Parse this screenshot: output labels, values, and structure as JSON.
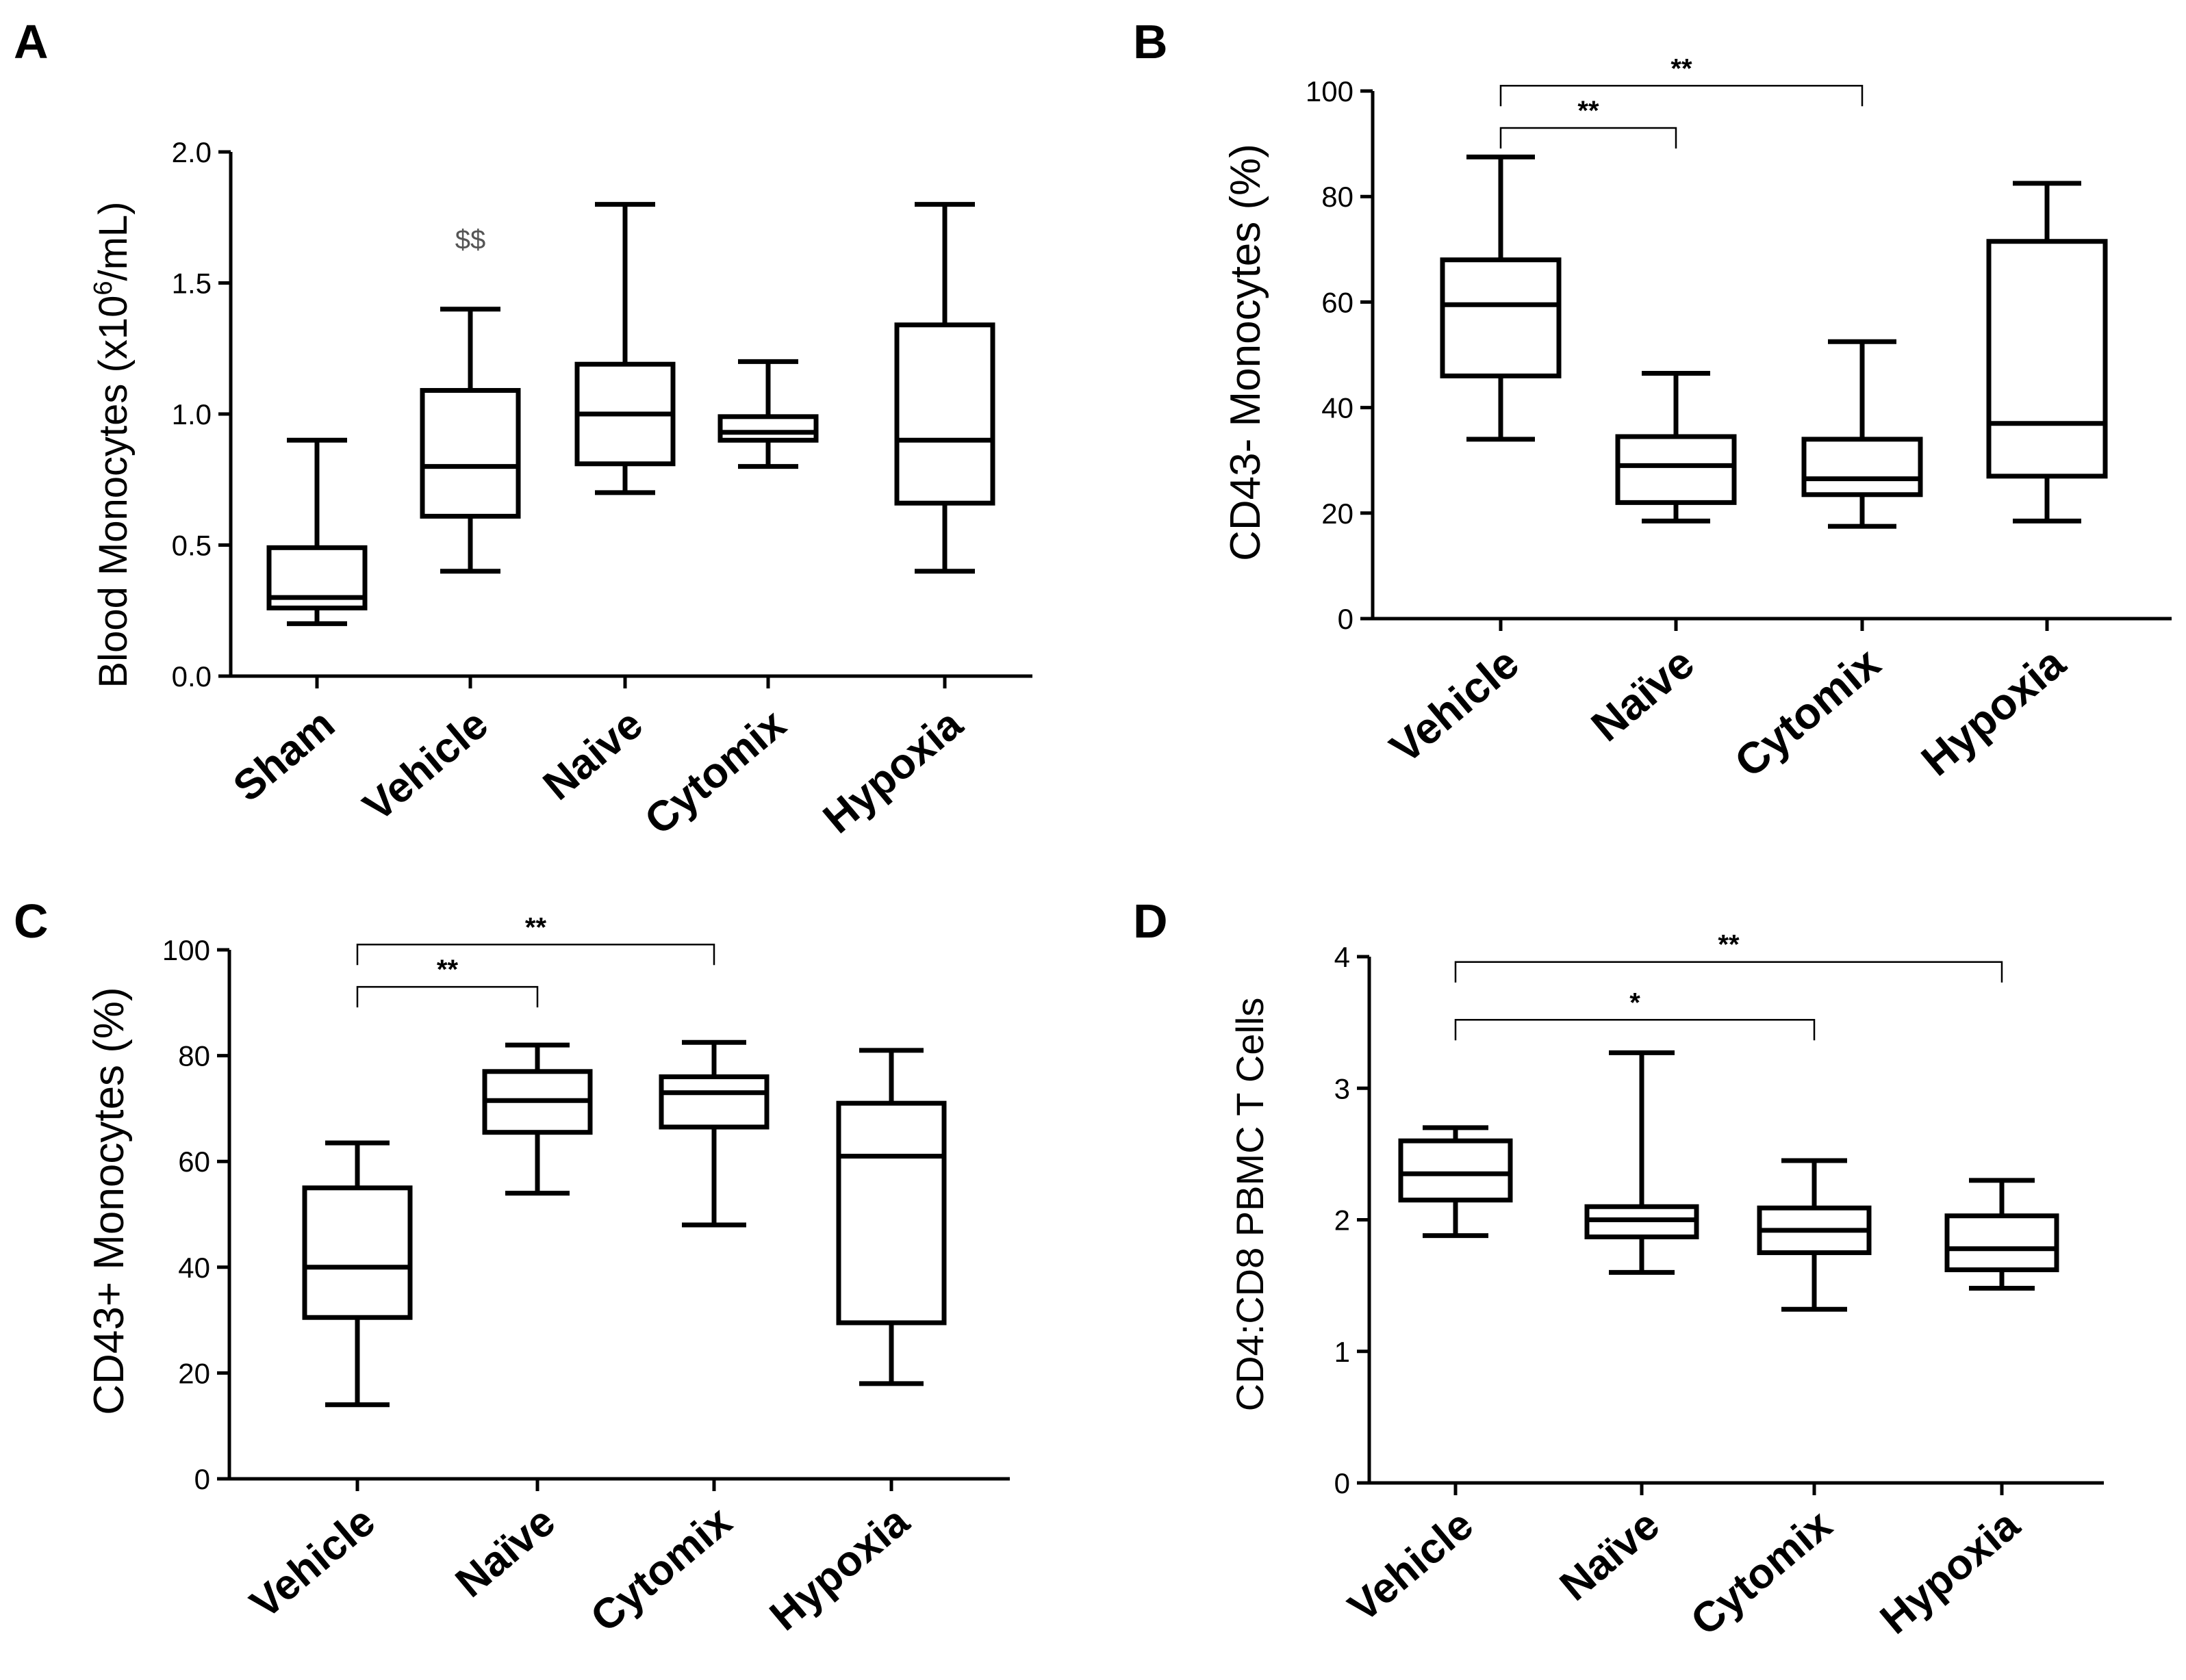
{
  "figure": {
    "panels": [
      "A",
      "B",
      "C",
      "D"
    ]
  },
  "chart_data": [
    {
      "panel": "A",
      "type": "box",
      "ylabel_main": "Blood Monocytes (x10",
      "ylabel_sup": "6",
      "ylabel_tail": "/mL)",
      "ylim": [
        0,
        2.0
      ],
      "yticks": [
        "0.0",
        "0.5",
        "1.0",
        "1.5",
        "2.0"
      ],
      "ytick_values": [
        0,
        0.5,
        1.0,
        1.5,
        2.0
      ],
      "categories": [
        "Sham",
        "Vehicle",
        "Naive",
        "Cytomix",
        "Hypoxia"
      ],
      "boxes": [
        {
          "min": 0.2,
          "q1": 0.26,
          "median": 0.3,
          "q3": 0.49,
          "max": 0.9
        },
        {
          "min": 0.4,
          "q1": 0.61,
          "median": 0.8,
          "q3": 1.09,
          "max": 1.4
        },
        {
          "min": 0.7,
          "q1": 0.81,
          "median": 1.0,
          "q3": 1.19,
          "max": 1.8
        },
        {
          "min": 0.8,
          "q1": 0.9,
          "median": 0.93,
          "q3": 0.99,
          "max": 1.2
        },
        {
          "min": 0.4,
          "q1": 0.66,
          "median": 0.9,
          "q3": 1.34,
          "max": 1.8
        }
      ],
      "annotations": [
        {
          "text": "$$",
          "category": 1,
          "y": 1.63
        }
      ],
      "brackets": []
    },
    {
      "panel": "B",
      "type": "box",
      "ylabel": "CD43- Monocytes (%)",
      "ylim": [
        0,
        100
      ],
      "yticks": [
        "0",
        "20",
        "40",
        "60",
        "80",
        "100"
      ],
      "ytick_values": [
        0,
        20,
        40,
        60,
        80,
        100
      ],
      "categories": [
        "Vehicle",
        "Naïve",
        "Cytomix",
        "Hypoxia"
      ],
      "boxes": [
        {
          "min": 34,
          "q1": 46,
          "median": 59.5,
          "q3": 68,
          "max": 87.5
        },
        {
          "min": 18.5,
          "q1": 22,
          "median": 29,
          "q3": 34.5,
          "max": 46.5
        },
        {
          "min": 17.5,
          "q1": 23.5,
          "median": 26.5,
          "q3": 34,
          "max": 52.5
        },
        {
          "min": 18.5,
          "q1": 27,
          "median": 37,
          "q3": 71.5,
          "max": 82.5
        }
      ],
      "annotations": [],
      "brackets": [
        {
          "from": 0,
          "to": 1,
          "y": 93,
          "label": "**"
        },
        {
          "from": 0,
          "to": 2,
          "y": 101,
          "label": "**"
        }
      ]
    },
    {
      "panel": "C",
      "type": "box",
      "ylabel": "CD43+ Monocytes (%)",
      "ylim": [
        0,
        100
      ],
      "yticks": [
        "0",
        "20",
        "40",
        "60",
        "80",
        "100"
      ],
      "ytick_values": [
        0,
        20,
        40,
        60,
        80,
        100
      ],
      "categories": [
        "Vehicle",
        "Naïve",
        "Cytomix",
        "Hypoxia"
      ],
      "boxes": [
        {
          "min": 14,
          "q1": 30.5,
          "median": 40,
          "q3": 55,
          "max": 63.5
        },
        {
          "min": 54,
          "q1": 65.5,
          "median": 71.5,
          "q3": 77,
          "max": 82
        },
        {
          "min": 48,
          "q1": 66.5,
          "median": 73,
          "q3": 76,
          "max": 82.5
        },
        {
          "min": 18,
          "q1": 29.5,
          "median": 61,
          "q3": 71,
          "max": 81
        }
      ],
      "annotations": [],
      "brackets": [
        {
          "from": 0,
          "to": 1,
          "y": 93,
          "label": "**"
        },
        {
          "from": 0,
          "to": 2,
          "y": 101,
          "label": "**"
        }
      ]
    },
    {
      "panel": "D",
      "type": "box",
      "ylabel": "CD4:CD8 PBMC T Cells",
      "ylim": [
        0,
        4
      ],
      "yticks": [
        "0",
        "1",
        "2",
        "3",
        "4"
      ],
      "ytick_values": [
        0,
        1,
        2,
        3,
        4
      ],
      "categories": [
        "Vehicle",
        "Naïve",
        "Cytomix",
        "Hypoxia"
      ],
      "boxes": [
        {
          "min": 1.88,
          "q1": 2.15,
          "median": 2.35,
          "q3": 2.6,
          "max": 2.7
        },
        {
          "min": 1.6,
          "q1": 1.87,
          "median": 2.0,
          "q3": 2.1,
          "max": 3.27
        },
        {
          "min": 1.32,
          "q1": 1.75,
          "median": 1.92,
          "q3": 2.09,
          "max": 2.45
        },
        {
          "min": 1.48,
          "q1": 1.62,
          "median": 1.78,
          "q3": 2.03,
          "max": 2.3
        }
      ],
      "annotations": [],
      "brackets": [
        {
          "from": 0,
          "to": 2,
          "y": 3.52,
          "label": "*"
        },
        {
          "from": 0,
          "to": 3,
          "y": 3.96,
          "label": "**"
        }
      ]
    }
  ]
}
